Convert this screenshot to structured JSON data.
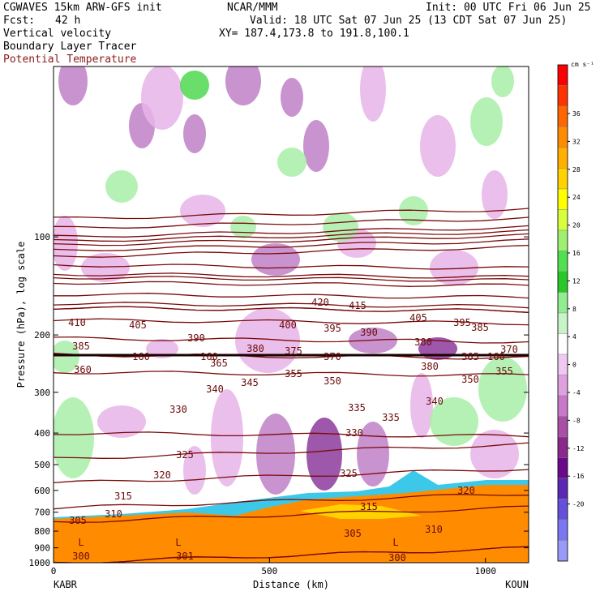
{
  "header": {
    "model": "CGWAVES 15km ARW-GFS init",
    "org": "NCAR/MMM",
    "init": "Init: 00 UTC Fri 06 Jun 25",
    "fcst_label": "Fcst:",
    "fcst_value": "42 h",
    "valid": "Valid: 18 UTC Sat 07 Jun 25 (13 CDT Sat 07 Jun 25)",
    "field1": "Vertical velocity",
    "xy": "XY= 187.4,173.8 to 191.8,100.1",
    "field2": "Boundary Layer Tracer",
    "field3": "Potential Temperature"
  },
  "chart_data": {
    "type": "heatmap",
    "ylabel": "Pressure (hPa), log scale",
    "xlabel": "Distance (km)",
    "x_start_label": "KABR",
    "x_end_label": "KOUN",
    "x_ticks": [
      0,
      500,
      1000
    ],
    "xlim": [
      0,
      1100
    ],
    "y_ticks": [
      100,
      200,
      300,
      400,
      500,
      600,
      700,
      800,
      900,
      1000
    ],
    "ylim": [
      1000,
      30
    ],
    "colorbar": {
      "unit": "cm s⁻¹",
      "ticks": [
        36,
        32,
        28,
        24,
        20,
        16,
        12,
        8,
        4,
        0,
        -4,
        -8,
        -12,
        -16,
        -20
      ],
      "colors": [
        "#ff0000",
        "#ff3300",
        "#ff6600",
        "#ff8c00",
        "#ffb000",
        "#ffd200",
        "#ffff00",
        "#d6ff3c",
        "#a0f070",
        "#50e050",
        "#28c828",
        "#90ee90",
        "#c8f5c8",
        "#ffffff",
        "#f0c8f0",
        "#e0a0e0",
        "#c878c8",
        "#a850a8",
        "#8c288c",
        "#6a0a8a",
        "#5a28b4",
        "#6450dc",
        "#7a78f0",
        "#9a9af8"
      ]
    },
    "theta_contours": [
      {
        "label": "300",
        "p": 1000
      },
      {
        "label": "301",
        "p": 1000
      },
      {
        "label": "305",
        "p": 750
      },
      {
        "label": "310",
        "p": 680
      },
      {
        "label": "315",
        "p": 570
      },
      {
        "label": "320",
        "p": 480
      },
      {
        "label": "325",
        "p": 400
      },
      {
        "label": "330",
        "p": 260
      },
      {
        "label": "335",
        "p": 230
      },
      {
        "label": "340",
        "p": 205
      },
      {
        "label": "345",
        "p": 180
      },
      {
        "label": "350",
        "p": 165
      },
      {
        "label": "355",
        "p": 160
      },
      {
        "label": "360",
        "p": 165
      },
      {
        "label": "365",
        "p": 150
      },
      {
        "label": "370",
        "p": 138
      },
      {
        "label": "375",
        "p": 133
      },
      {
        "label": "380",
        "p": 130
      },
      {
        "label": "385",
        "p": 122
      },
      {
        "label": "390",
        "p": 115
      },
      {
        "label": "395",
        "p": 110
      },
      {
        "label": "400",
        "p": 106
      },
      {
        "label": "405",
        "p": 103
      },
      {
        "label": "410",
        "p": 100
      },
      {
        "label": "415",
        "p": 94
      },
      {
        "label": "420",
        "p": 88
      }
    ],
    "extra_labels": [
      "L",
      "L",
      "L",
      "160",
      "160",
      "160",
      "385",
      "380",
      "405",
      "395",
      "365",
      "380",
      "390",
      "355",
      "350",
      "370",
      "335",
      "340",
      "315",
      "320",
      "325",
      "330",
      "305",
      "310",
      "300"
    ]
  }
}
